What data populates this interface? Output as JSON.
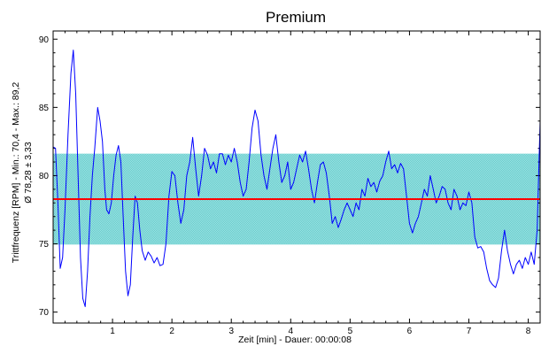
{
  "chart_data": {
    "type": "line",
    "title": "Premium",
    "xlabel": "Zeit [min] - Dauer: 00:00:08",
    "ylabel": "Trittfrequenz [RPM] - Min.: 70,4 - Max.: 89,2",
    "ylabel2": "Ø 78,28 ± 3,33",
    "xlim": [
      0,
      8.2
    ],
    "ylim": [
      69.2,
      90.6
    ],
    "x_ticks": [
      "1",
      "2",
      "3",
      "4",
      "5",
      "6",
      "7",
      "8"
    ],
    "x_tick_values": [
      1,
      2,
      3,
      4,
      5,
      6,
      7,
      8
    ],
    "y_ticks": [
      "70",
      "75",
      "80",
      "85",
      "90"
    ],
    "y_tick_values": [
      70,
      75,
      80,
      85,
      90
    ],
    "mean": 78.28,
    "std": 3.33,
    "band": [
      74.95,
      81.61
    ],
    "colors": {
      "series": "#0000ff",
      "mean_line": "#ff0000",
      "band": "#66cccc",
      "axis": "#000000"
    },
    "series": [
      {
        "values": [
          [
            0.0,
            82.1
          ],
          [
            0.04,
            82.0
          ],
          [
            0.08,
            78.0
          ],
          [
            0.12,
            73.2
          ],
          [
            0.16,
            74.0
          ],
          [
            0.2,
            77.5
          ],
          [
            0.25,
            83.0
          ],
          [
            0.3,
            87.5
          ],
          [
            0.34,
            89.2
          ],
          [
            0.38,
            86.0
          ],
          [
            0.42,
            80.0
          ],
          [
            0.46,
            74.0
          ],
          [
            0.5,
            71.0
          ],
          [
            0.54,
            70.4
          ],
          [
            0.58,
            73.0
          ],
          [
            0.62,
            77.0
          ],
          [
            0.66,
            80.0
          ],
          [
            0.7,
            82.0
          ],
          [
            0.75,
            85.0
          ],
          [
            0.79,
            84.0
          ],
          [
            0.83,
            82.5
          ],
          [
            0.87,
            79.0
          ],
          [
            0.9,
            77.5
          ],
          [
            0.94,
            77.2
          ],
          [
            0.98,
            78.0
          ],
          [
            1.02,
            80.0
          ],
          [
            1.06,
            81.5
          ],
          [
            1.1,
            82.2
          ],
          [
            1.14,
            81.0
          ],
          [
            1.18,
            77.0
          ],
          [
            1.22,
            73.0
          ],
          [
            1.26,
            71.2
          ],
          [
            1.3,
            72.0
          ],
          [
            1.34,
            75.5
          ],
          [
            1.38,
            78.5
          ],
          [
            1.42,
            78.0
          ],
          [
            1.46,
            76.0
          ],
          [
            1.5,
            74.5
          ],
          [
            1.55,
            73.8
          ],
          [
            1.6,
            74.4
          ],
          [
            1.65,
            74.1
          ],
          [
            1.7,
            73.6
          ],
          [
            1.75,
            74.0
          ],
          [
            1.8,
            73.4
          ],
          [
            1.85,
            73.5
          ],
          [
            1.9,
            75.0
          ],
          [
            1.95,
            78.5
          ],
          [
            2.0,
            80.3
          ],
          [
            2.05,
            80.0
          ],
          [
            2.1,
            78.0
          ],
          [
            2.15,
            76.5
          ],
          [
            2.2,
            77.5
          ],
          [
            2.25,
            80.0
          ],
          [
            2.3,
            81.0
          ],
          [
            2.35,
            82.8
          ],
          [
            2.4,
            80.5
          ],
          [
            2.45,
            78.5
          ],
          [
            2.5,
            80.0
          ],
          [
            2.55,
            82.0
          ],
          [
            2.6,
            81.5
          ],
          [
            2.65,
            80.5
          ],
          [
            2.7,
            81.0
          ],
          [
            2.75,
            80.2
          ],
          [
            2.8,
            81.6
          ],
          [
            2.85,
            81.6
          ],
          [
            2.9,
            80.8
          ],
          [
            2.95,
            81.5
          ],
          [
            3.0,
            81.0
          ],
          [
            3.05,
            82.0
          ],
          [
            3.1,
            81.0
          ],
          [
            3.15,
            79.5
          ],
          [
            3.2,
            78.5
          ],
          [
            3.25,
            79.0
          ],
          [
            3.3,
            81.0
          ],
          [
            3.35,
            83.5
          ],
          [
            3.4,
            84.8
          ],
          [
            3.45,
            84.0
          ],
          [
            3.5,
            81.5
          ],
          [
            3.55,
            80.0
          ],
          [
            3.6,
            79.0
          ],
          [
            3.65,
            80.5
          ],
          [
            3.7,
            82.0
          ],
          [
            3.75,
            83.0
          ],
          [
            3.8,
            81.0
          ],
          [
            3.85,
            79.5
          ],
          [
            3.9,
            80.0
          ],
          [
            3.95,
            81.0
          ],
          [
            4.0,
            79.0
          ],
          [
            4.05,
            79.5
          ],
          [
            4.1,
            80.5
          ],
          [
            4.15,
            81.5
          ],
          [
            4.2,
            81.0
          ],
          [
            4.25,
            81.8
          ],
          [
            4.3,
            80.5
          ],
          [
            4.35,
            79.0
          ],
          [
            4.4,
            78.0
          ],
          [
            4.45,
            79.5
          ],
          [
            4.5,
            80.8
          ],
          [
            4.55,
            81.0
          ],
          [
            4.6,
            80.2
          ],
          [
            4.65,
            78.5
          ],
          [
            4.7,
            76.5
          ],
          [
            4.75,
            77.0
          ],
          [
            4.8,
            76.2
          ],
          [
            4.85,
            76.8
          ],
          [
            4.9,
            77.5
          ],
          [
            4.95,
            78.0
          ],
          [
            5.0,
            77.5
          ],
          [
            5.05,
            77.0
          ],
          [
            5.1,
            78.0
          ],
          [
            5.15,
            77.5
          ],
          [
            5.2,
            79.0
          ],
          [
            5.25,
            78.5
          ],
          [
            5.3,
            79.8
          ],
          [
            5.35,
            79.2
          ],
          [
            5.4,
            79.5
          ],
          [
            5.45,
            78.8
          ],
          [
            5.5,
            79.6
          ],
          [
            5.55,
            80.0
          ],
          [
            5.6,
            81.0
          ],
          [
            5.65,
            81.8
          ],
          [
            5.7,
            80.5
          ],
          [
            5.75,
            80.8
          ],
          [
            5.8,
            80.2
          ],
          [
            5.85,
            80.9
          ],
          [
            5.9,
            80.5
          ],
          [
            5.95,
            78.5
          ],
          [
            6.0,
            76.5
          ],
          [
            6.05,
            75.8
          ],
          [
            6.1,
            76.5
          ],
          [
            6.15,
            77.0
          ],
          [
            6.2,
            78.0
          ],
          [
            6.25,
            79.0
          ],
          [
            6.3,
            78.5
          ],
          [
            6.35,
            80.0
          ],
          [
            6.4,
            79.0
          ],
          [
            6.45,
            78.0
          ],
          [
            6.5,
            78.5
          ],
          [
            6.55,
            79.2
          ],
          [
            6.6,
            79.0
          ],
          [
            6.65,
            78.0
          ],
          [
            6.7,
            77.5
          ],
          [
            6.75,
            79.0
          ],
          [
            6.8,
            78.5
          ],
          [
            6.85,
            77.5
          ],
          [
            6.9,
            78.0
          ],
          [
            6.95,
            77.8
          ],
          [
            7.0,
            78.8
          ],
          [
            7.05,
            78.0
          ],
          [
            7.1,
            75.5
          ],
          [
            7.15,
            74.7
          ],
          [
            7.2,
            74.8
          ],
          [
            7.25,
            74.4
          ],
          [
            7.3,
            73.2
          ],
          [
            7.35,
            72.3
          ],
          [
            7.4,
            72.0
          ],
          [
            7.45,
            71.8
          ],
          [
            7.5,
            72.5
          ],
          [
            7.55,
            74.5
          ],
          [
            7.6,
            76.0
          ],
          [
            7.65,
            74.5
          ],
          [
            7.7,
            73.5
          ],
          [
            7.75,
            72.8
          ],
          [
            7.8,
            73.5
          ],
          [
            7.85,
            73.8
          ],
          [
            7.9,
            73.2
          ],
          [
            7.95,
            74.0
          ],
          [
            8.0,
            73.5
          ],
          [
            8.05,
            74.4
          ],
          [
            8.1,
            73.5
          ],
          [
            8.15,
            76.0
          ],
          [
            8.2,
            84.0
          ]
        ]
      }
    ]
  }
}
